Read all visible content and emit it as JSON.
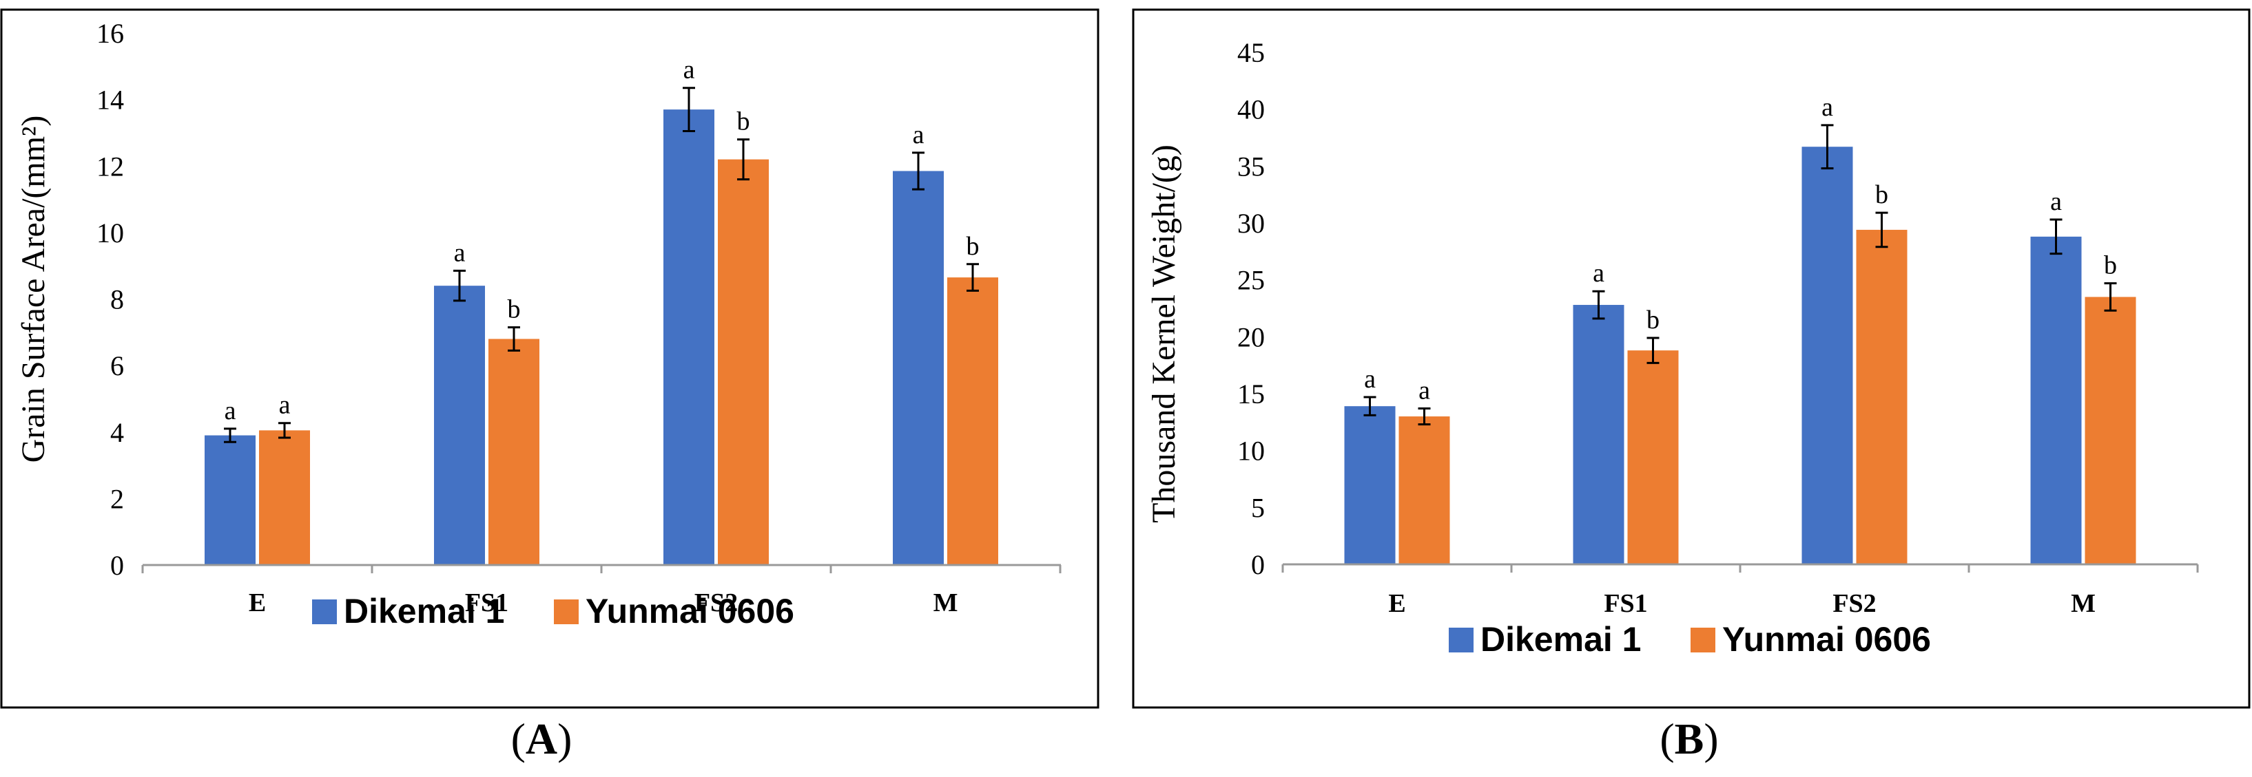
{
  "colors": {
    "series1": "#4472C4",
    "series2": "#ED7D31"
  },
  "chart_data": [
    {
      "type": "bar",
      "panel": "A",
      "ylabel": "Grain Surface Area/(mm²)",
      "xlabel": "",
      "ylim": [
        0,
        16
      ],
      "ytick_step": 2,
      "yticks": [
        "0",
        "2",
        "4",
        "6",
        "8",
        "10",
        "12",
        "14",
        "16"
      ],
      "categories": [
        "E",
        "FS1",
        "FS2",
        "M"
      ],
      "legend_position": "bottom",
      "series": [
        {
          "name": "Dikemai 1",
          "values": [
            3.9,
            8.4,
            13.7,
            11.85
          ],
          "errors": [
            0.2,
            0.45,
            0.65,
            0.55
          ],
          "labels": [
            "a",
            "a",
            "a",
            "a"
          ]
        },
        {
          "name": "Yunmai 0606",
          "values": [
            4.05,
            6.8,
            12.2,
            8.65
          ],
          "errors": [
            0.22,
            0.35,
            0.6,
            0.4
          ],
          "labels": [
            "a",
            "b",
            "b",
            "b"
          ]
        }
      ]
    },
    {
      "type": "bar",
      "panel": "B",
      "ylabel": "Thousand Kernel Weight/(g)",
      "xlabel": "",
      "ylim": [
        0,
        45
      ],
      "ytick_step": 5,
      "yticks": [
        "0",
        "5",
        "10",
        "15",
        "20",
        "25",
        "30",
        "35",
        "40",
        "45"
      ],
      "categories": [
        "E",
        "FS1",
        "FS2",
        "M"
      ],
      "legend_position": "bottom",
      "series": [
        {
          "name": "Dikemai 1",
          "values": [
            13.9,
            22.8,
            36.7,
            28.8
          ],
          "errors": [
            0.8,
            1.2,
            1.9,
            1.5
          ],
          "labels": [
            "a",
            "a",
            "a",
            "a"
          ]
        },
        {
          "name": "Yunmai 0606",
          "values": [
            13.0,
            18.8,
            29.4,
            23.5
          ],
          "errors": [
            0.7,
            1.1,
            1.5,
            1.2
          ],
          "labels": [
            "a",
            "b",
            "b",
            "b"
          ]
        }
      ]
    }
  ],
  "panel_labels": [
    {
      "open": "(",
      "letter": "A",
      "close": ")"
    },
    {
      "open": "(",
      "letter": "B",
      "close": ")"
    }
  ]
}
